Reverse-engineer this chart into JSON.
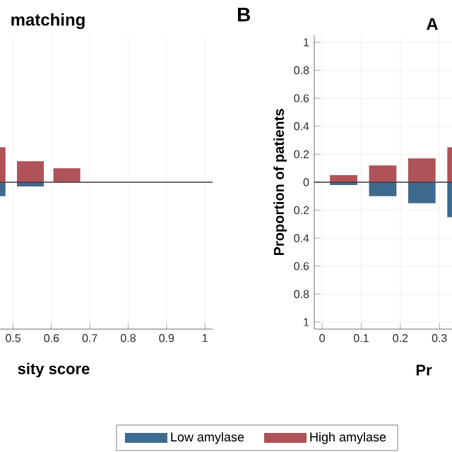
{
  "chart_data": [
    {
      "type": "bar",
      "title": "matching",
      "xlabel": "sity score",
      "x": [
        0.445,
        0.545,
        0.64
      ],
      "series": [
        {
          "name": "Low amylase",
          "color": "#3f6a8f",
          "values": [
            -0.1,
            -0.03,
            0
          ]
        },
        {
          "name": "High amylase",
          "color": "#b05358",
          "values": [
            0.25,
            0.15,
            0.1
          ]
        }
      ],
      "stacked": true,
      "xlim": [
        0.44,
        1.02
      ],
      "xticks": [
        0.5,
        0.6,
        0.7,
        0.8,
        0.9,
        1
      ],
      "ylim": [
        -1.05,
        1.05
      ],
      "yticks": [
        -1,
        -0.8,
        -0.6,
        -0.4,
        -0.2,
        0,
        0.2,
        0.4,
        0.6,
        0.8,
        1
      ],
      "tick_labels": "x",
      "grid": true,
      "legend": "bottom",
      "ref_lines": [
        {
          "axis": "y",
          "value": 0
        }
      ]
    },
    {
      "type": "bar",
      "title": "A",
      "xlabel": "Pr",
      "ylabel": "Proportion of patients",
      "annotations": [
        "B"
      ],
      "x": [
        0.055,
        0.155,
        0.255,
        0.355
      ],
      "series": [
        {
          "color": "#3f6a8f",
          "values": [
            -0.02,
            -0.1,
            -0.15,
            -0.25
          ]
        },
        {
          "color": "#b05358",
          "values": [
            0.05,
            0.12,
            0.17,
            0.25
          ]
        }
      ],
      "stacked": true,
      "xlim": [
        -0.02,
        0.4
      ],
      "xticks": [
        0,
        0.1,
        0.2,
        0.3
      ],
      "ylim": [
        -1.05,
        1.05
      ],
      "yticks": [
        {
          "value": -1,
          "label": "1"
        },
        {
          "value": -0.8,
          "label": "0.8"
        },
        {
          "value": -0.6,
          "label": "0.6"
        },
        {
          "value": -0.4,
          "label": "0.4"
        },
        {
          "value": -0.2,
          "label": "0.2"
        },
        0,
        0.2,
        0.4,
        0.6,
        0.8,
        1
      ],
      "grid": true,
      "ref_lines": [
        {
          "axis": "y",
          "value": 0
        }
      ]
    }
  ]
}
